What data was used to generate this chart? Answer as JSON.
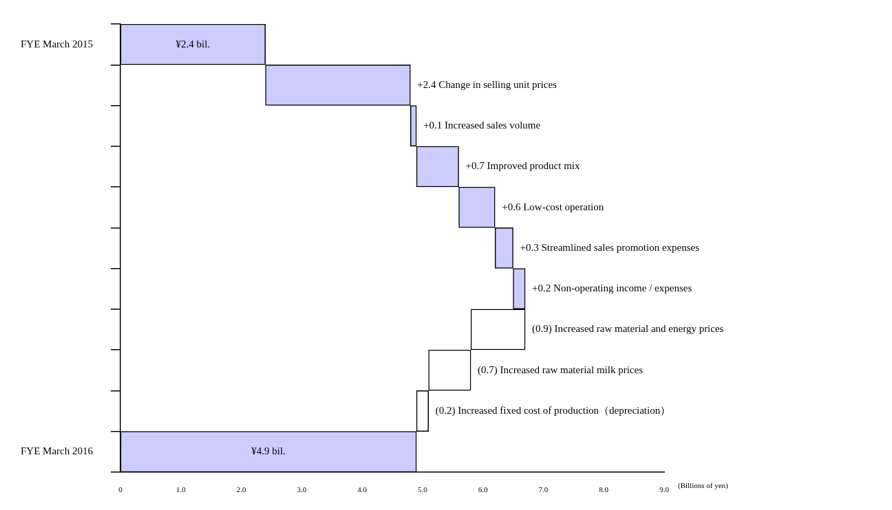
{
  "chart_data": {
    "type": "bar",
    "orientation": "horizontal",
    "categories": [
      "FYE March 2015",
      null,
      null,
      null,
      null,
      null,
      null,
      null,
      null,
      null,
      "FYE March 2016"
    ],
    "base": [
      0,
      2.4,
      4.8,
      4.9,
      5.6,
      6.2,
      6.5,
      6.7,
      5.8,
      5.1,
      0
    ],
    "values": [
      2.4,
      2.4,
      0.1,
      0.7,
      0.6,
      0.3,
      0.2,
      -0.9,
      -0.7,
      -0.2,
      4.9
    ],
    "colors": [
      "#ccccff",
      "#ccccff",
      "#ccccff",
      "#ccccff",
      "#ccccff",
      "#ccccff",
      "#ccccff",
      "#ffffff",
      "#ffffff",
      "#ffffff",
      "#ccccff"
    ],
    "value_labels": [
      "¥2.4 bil.",
      "+2.4 Change in selling unit prices",
      "+0.1 Increased sales volume",
      "+0.7 Improved product mix",
      "+0.6 Low-cost operation",
      "+0.3 Streamlined sales promotion expenses",
      "+0.2 Non-operating income / expenses",
      "(0.9) Increased raw material and energy prices",
      "(0.7) Increased raw material milk prices",
      "(0.2) Increased fixed cost of production（depreciation）",
      "¥4.9 bil."
    ],
    "xlim": [
      0,
      9
    ],
    "xticks": [
      0,
      {
        "value": 1,
        "label": "1.0"
      },
      {
        "value": 2,
        "label": "2.0"
      },
      {
        "value": 3,
        "label": "3.0"
      },
      {
        "value": 4,
        "label": "4.0"
      },
      {
        "value": 5,
        "label": "5.0"
      },
      {
        "value": 6,
        "label": "6.0"
      },
      {
        "value": 7,
        "label": "7.0"
      },
      {
        "value": 8,
        "label": "8.0"
      },
      {
        "value": 9,
        "label": "9.0"
      }
    ],
    "xlabel": "(Billions of yen)"
  }
}
